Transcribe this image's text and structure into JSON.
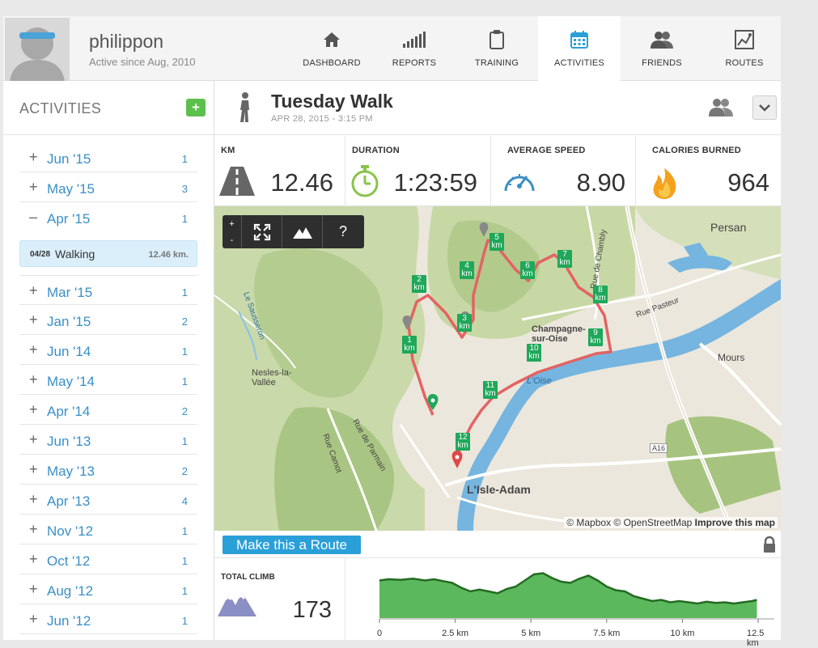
{
  "user": {
    "name": "philippon",
    "since": "Active since Aug, 2010"
  },
  "nav": [
    {
      "label": "DASHBOARD",
      "icon": "home-icon"
    },
    {
      "label": "REPORTS",
      "icon": "bar-chart-icon"
    },
    {
      "label": "TRAINING",
      "icon": "clipboard-icon"
    },
    {
      "label": "ACTIVITIES",
      "icon": "calendar-icon",
      "active": true
    },
    {
      "label": "FRIENDS",
      "icon": "friends-icon"
    },
    {
      "label": "ROUTES",
      "icon": "route-map-icon"
    }
  ],
  "sidebar": {
    "title": "ACTIVITIES",
    "add_label": "+",
    "months": [
      {
        "sign": "+",
        "label": "Jun '15",
        "count": "1"
      },
      {
        "sign": "+",
        "label": "May '15",
        "count": "3"
      },
      {
        "sign": "–",
        "label": "Apr '15",
        "count": "1",
        "expanded": true
      },
      {
        "sign": "+",
        "label": "Mar '15",
        "count": "1"
      },
      {
        "sign": "+",
        "label": "Jan '15",
        "count": "2"
      },
      {
        "sign": "+",
        "label": "Jun '14",
        "count": "1"
      },
      {
        "sign": "+",
        "label": "May '14",
        "count": "1"
      },
      {
        "sign": "+",
        "label": "Apr '14",
        "count": "2"
      },
      {
        "sign": "+",
        "label": "Jun '13",
        "count": "1"
      },
      {
        "sign": "+",
        "label": "May '13",
        "count": "2"
      },
      {
        "sign": "+",
        "label": "Apr '13",
        "count": "4"
      },
      {
        "sign": "+",
        "label": "Nov '12",
        "count": "1"
      },
      {
        "sign": "+",
        "label": "Oct '12",
        "count": "1"
      },
      {
        "sign": "+",
        "label": "Aug '12",
        "count": "1"
      },
      {
        "sign": "+",
        "label": "Jun '12",
        "count": "1"
      }
    ],
    "activity": {
      "date": "04/28",
      "type": "Walking",
      "distance": "12.46 km."
    }
  },
  "activity": {
    "title": "Tuesday Walk",
    "date": "APR 28, 2015  -  3:15 PM",
    "stats": [
      {
        "label": "KM",
        "value": "12.46",
        "icon": "road-icon"
      },
      {
        "label": "DURATION",
        "value": "1:23:59",
        "icon": "stopwatch-icon"
      },
      {
        "label": "AVERAGE SPEED",
        "value": "8.90",
        "icon": "speedometer-icon"
      },
      {
        "label": "CALORIES BURNED",
        "value": "964",
        "icon": "flame-icon"
      }
    ]
  },
  "map": {
    "zoom_in": "+",
    "zoom_out": "-",
    "help": "?",
    "attribution": "© Mapbox © OpenStreetMap",
    "improve": "Improve this map",
    "km_markers": [
      "1",
      "2",
      "3",
      "4",
      "5",
      "6",
      "7",
      "8",
      "9",
      "10",
      "11",
      "12"
    ],
    "labels": [
      "Persan",
      "Champagne-sur-Oise",
      "Mours",
      "Nesles-la-Vallée",
      "L'Isle-Adam",
      "L'Oise",
      "Rue Pasteur",
      "Rue de Chambly",
      "Rue Camot",
      "Rue de Parmain",
      "A16",
      "Le Sausseron"
    ]
  },
  "route_button": "Make this a Route",
  "climb": {
    "label": "TOTAL CLIMB",
    "value": "173"
  },
  "elevation": {
    "ticks": [
      "0",
      "2.5 km",
      "5 km",
      "7.5 km",
      "10 km",
      "12.5 km"
    ],
    "tick_positions_km": [
      0,
      2.5,
      5,
      7.5,
      10,
      12.5
    ],
    "profile_km": [
      0,
      0.3,
      0.7,
      1.1,
      1.5,
      1.8,
      2.1,
      2.4,
      2.7,
      3.0,
      3.3,
      3.6,
      3.9,
      4.2,
      4.5,
      4.8,
      5.1,
      5.4,
      5.7,
      6.0,
      6.3,
      6.6,
      6.9,
      7.2,
      7.5,
      7.8,
      8.1,
      8.4,
      8.7,
      9.0,
      9.3,
      9.6,
      9.9,
      10.2,
      10.5,
      10.8,
      11.1,
      11.4,
      11.7,
      12.0,
      12.3,
      12.46
    ],
    "profile_elev": [
      62,
      64,
      63,
      65,
      62,
      64,
      61,
      58,
      50,
      44,
      47,
      44,
      41,
      48,
      52,
      62,
      72,
      74,
      66,
      60,
      58,
      65,
      70,
      62,
      52,
      46,
      44,
      36,
      32,
      28,
      30,
      26,
      28,
      26,
      24,
      27,
      25,
      26,
      24,
      26,
      28,
      30
    ],
    "fill": "#5cb85c",
    "stroke": "#236b23"
  },
  "colors": {
    "route": "#e36363",
    "accent": "#2a9fd8",
    "green": "#5cc04c",
    "water": "#70b7e6"
  }
}
